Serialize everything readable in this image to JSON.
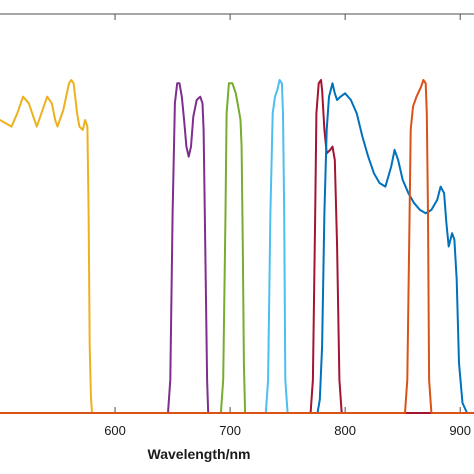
{
  "chart_data": {
    "type": "line",
    "xlabel": "Wavelength/nm",
    "ylabel": "",
    "title": "",
    "xlim": [
      500,
      912
    ],
    "ylim": [
      0,
      1
    ],
    "xticks": [
      600,
      700,
      800,
      900
    ],
    "xtick_labels": [
      "600",
      "700",
      "800",
      "900"
    ],
    "grid": false,
    "legend": "none",
    "series": [
      {
        "color": "#EDB120",
        "points": [
          [
            500,
            0.88
          ],
          [
            510,
            0.86
          ],
          [
            515,
            0.9
          ],
          [
            520,
            0.95
          ],
          [
            525,
            0.93
          ],
          [
            530,
            0.88
          ],
          [
            532,
            0.86
          ],
          [
            536,
            0.9
          ],
          [
            541,
            0.95
          ],
          [
            545,
            0.93
          ],
          [
            548,
            0.88
          ],
          [
            550,
            0.86
          ],
          [
            555,
            0.91
          ],
          [
            560,
            0.99
          ],
          [
            562,
            1.0
          ],
          [
            564,
            0.99
          ],
          [
            567,
            0.9
          ],
          [
            569,
            0.86
          ],
          [
            572,
            0.85
          ],
          [
            574,
            0.88
          ],
          [
            576,
            0.86
          ],
          [
            577,
            0.6
          ],
          [
            578,
            0.2
          ],
          [
            579,
            0.05
          ],
          [
            580,
            0.0
          ],
          [
            912,
            0.0
          ]
        ]
      },
      {
        "color": "#7E2F8E",
        "points": [
          [
            500,
            0.0
          ],
          [
            646,
            0.0
          ],
          [
            648,
            0.1
          ],
          [
            650,
            0.6
          ],
          [
            652,
            0.93
          ],
          [
            654,
            0.99
          ],
          [
            656,
            0.99
          ],
          [
            658,
            0.95
          ],
          [
            660,
            0.88
          ],
          [
            662,
            0.8
          ],
          [
            664,
            0.77
          ],
          [
            666,
            0.8
          ],
          [
            668,
            0.89
          ],
          [
            671,
            0.94
          ],
          [
            674,
            0.95
          ],
          [
            676,
            0.93
          ],
          [
            677,
            0.85
          ],
          [
            678,
            0.6
          ],
          [
            680,
            0.1
          ],
          [
            681,
            0.0
          ],
          [
            912,
            0.0
          ]
        ]
      },
      {
        "color": "#77AC30",
        "points": [
          [
            500,
            0.0
          ],
          [
            692,
            0.0
          ],
          [
            694,
            0.1
          ],
          [
            696,
            0.6
          ],
          [
            697,
            0.9
          ],
          [
            699,
            0.99
          ],
          [
            702,
            0.99
          ],
          [
            705,
            0.96
          ],
          [
            707,
            0.92
          ],
          [
            709,
            0.88
          ],
          [
            710,
            0.8
          ],
          [
            711,
            0.5
          ],
          [
            712,
            0.15
          ],
          [
            713,
            0.0
          ],
          [
            912,
            0.0
          ]
        ]
      },
      {
        "color": "#4DBEEE",
        "points": [
          [
            500,
            0.0
          ],
          [
            731,
            0.0
          ],
          [
            733,
            0.1
          ],
          [
            735,
            0.6
          ],
          [
            737,
            0.9
          ],
          [
            739,
            0.95
          ],
          [
            741,
            0.97
          ],
          [
            743,
            1.0
          ],
          [
            745,
            0.99
          ],
          [
            746,
            0.9
          ],
          [
            747,
            0.6
          ],
          [
            748,
            0.1
          ],
          [
            750,
            0.0
          ],
          [
            912,
            0.0
          ]
        ]
      },
      {
        "color": "#A2142F",
        "points": [
          [
            500,
            0.0
          ],
          [
            770,
            0.0
          ],
          [
            772,
            0.1
          ],
          [
            774,
            0.6
          ],
          [
            775,
            0.9
          ],
          [
            777,
            0.99
          ],
          [
            779,
            1.0
          ],
          [
            780,
            0.97
          ],
          [
            782,
            0.85
          ],
          [
            784,
            0.78
          ],
          [
            787,
            0.79
          ],
          [
            789,
            0.8
          ],
          [
            791,
            0.76
          ],
          [
            793,
            0.5
          ],
          [
            795,
            0.1
          ],
          [
            797,
            0.0
          ],
          [
            912,
            0.0
          ]
        ]
      },
      {
        "color": "#0072BD",
        "points": [
          [
            500,
            0.0
          ],
          [
            776,
            0.0
          ],
          [
            778,
            0.04
          ],
          [
            780,
            0.2
          ],
          [
            782,
            0.6
          ],
          [
            784,
            0.85
          ],
          [
            786,
            0.95
          ],
          [
            789,
            0.99
          ],
          [
            791,
            0.96
          ],
          [
            793,
            0.94
          ],
          [
            796,
            0.95
          ],
          [
            800,
            0.96
          ],
          [
            805,
            0.94
          ],
          [
            810,
            0.9
          ],
          [
            815,
            0.83
          ],
          [
            820,
            0.77
          ],
          [
            825,
            0.72
          ],
          [
            830,
            0.69
          ],
          [
            835,
            0.68
          ],
          [
            840,
            0.74
          ],
          [
            843,
            0.79
          ],
          [
            846,
            0.76
          ],
          [
            850,
            0.7
          ],
          [
            855,
            0.66
          ],
          [
            860,
            0.63
          ],
          [
            865,
            0.61
          ],
          [
            870,
            0.6
          ],
          [
            875,
            0.61
          ],
          [
            880,
            0.64
          ],
          [
            883,
            0.68
          ],
          [
            886,
            0.66
          ],
          [
            888,
            0.57
          ],
          [
            890,
            0.5
          ],
          [
            893,
            0.54
          ],
          [
            895,
            0.52
          ],
          [
            897,
            0.4
          ],
          [
            899,
            0.15
          ],
          [
            902,
            0.03
          ],
          [
            906,
            0.0
          ],
          [
            912,
            0.0
          ]
        ]
      },
      {
        "color": "#D95319",
        "points": [
          [
            500,
            0.0
          ],
          [
            852,
            0.0
          ],
          [
            854,
            0.1
          ],
          [
            856,
            0.6
          ],
          [
            857,
            0.85
          ],
          [
            859,
            0.92
          ],
          [
            862,
            0.95
          ],
          [
            866,
            0.98
          ],
          [
            868,
            1.0
          ],
          [
            870,
            0.99
          ],
          [
            871,
            0.9
          ],
          [
            872,
            0.6
          ],
          [
            873,
            0.1
          ],
          [
            875,
            0.0
          ],
          [
            912,
            0.0
          ]
        ]
      }
    ]
  }
}
